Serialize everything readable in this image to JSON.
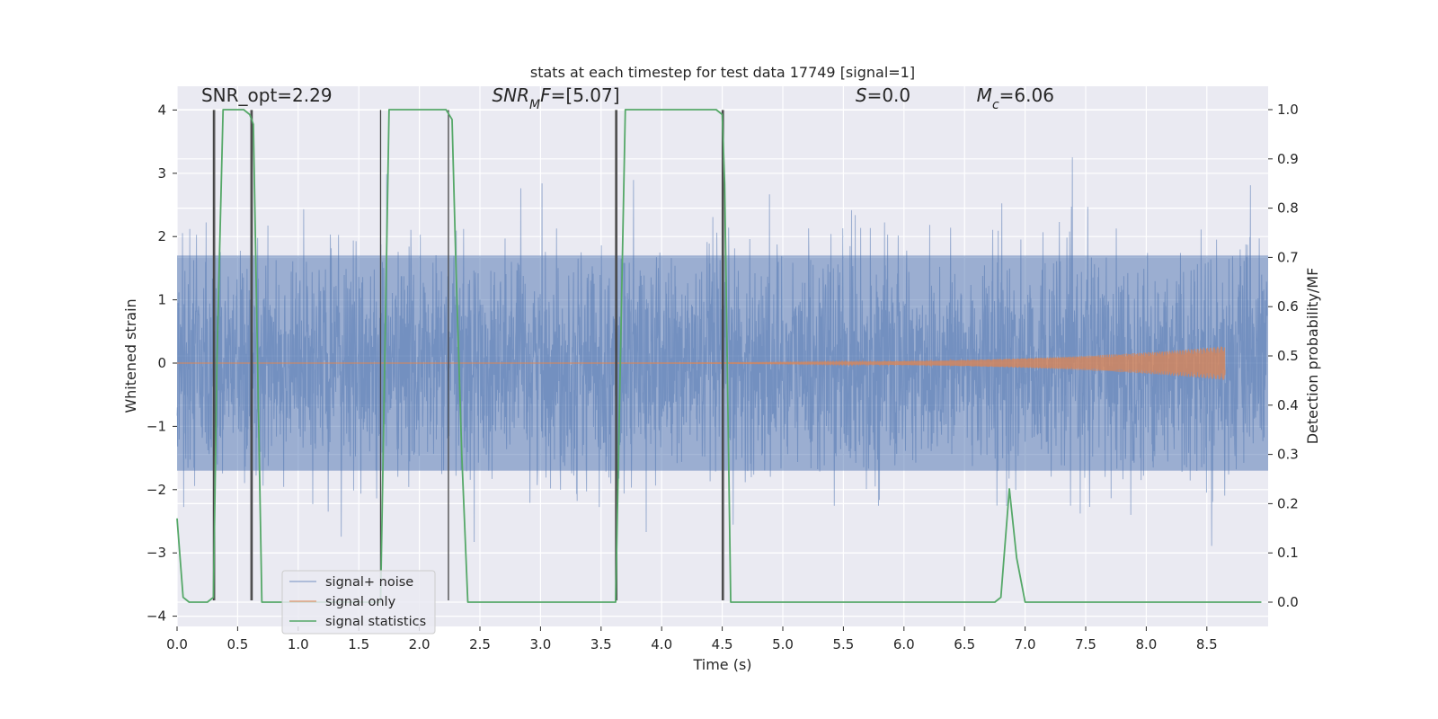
{
  "chart_data": {
    "type": "line",
    "title": "stats at each timestep for test data 17749 [signal=1]",
    "xlabel": "Time (s)",
    "ylabel_left": "Whitened strain",
    "ylabel_right": "Detection probability/MF",
    "xlim": [
      0,
      9.0
    ],
    "ylim_left": [
      -4.3,
      4.4
    ],
    "ylim_right": [
      -0.045,
      1.045
    ],
    "x_ticks": [
      0.0,
      0.5,
      1.0,
      1.5,
      2.0,
      2.5,
      3.0,
      3.5,
      4.0,
      4.5,
      5.0,
      5.5,
      6.0,
      6.5,
      7.0,
      7.5,
      8.0,
      8.5
    ],
    "x_tick_labels": [
      "0.0",
      "0.5",
      "1.0",
      "1.5",
      "2.0",
      "2.5",
      "3.0",
      "3.5",
      "4.0",
      "4.5",
      "5.0",
      "5.5",
      "6.0",
      "6.5",
      "7.0",
      "7.5",
      "8.0",
      "8.5"
    ],
    "y_left_ticks": [
      -4,
      -3,
      -2,
      -1,
      0,
      1,
      2,
      3,
      4
    ],
    "y_left_tick_labels": [
      "−4",
      "−3",
      "−2",
      "−1",
      "0",
      "1",
      "2",
      "3",
      "4"
    ],
    "y_right_ticks": [
      0.0,
      0.1,
      0.2,
      0.3,
      0.4,
      0.5,
      0.6,
      0.7,
      0.8,
      0.9,
      1.0
    ],
    "y_right_tick_labels": [
      "0.0",
      "0.1",
      "0.2",
      "0.3",
      "0.4",
      "0.5",
      "0.6",
      "0.7",
      "0.8",
      "0.9",
      "1.0"
    ],
    "grid": true,
    "legend_position": "lower-left",
    "annotations": [
      {
        "x": 0.2,
        "y": 4.13,
        "parts": [
          {
            "t": "SNR_opt=2.29",
            "i": false
          }
        ]
      },
      {
        "x": 2.6,
        "y": 4.13,
        "parts": [
          {
            "t": "SNR",
            "i": true
          },
          {
            "t": "M",
            "i": true,
            "sub": true
          },
          {
            "t": "F",
            "i": true
          },
          {
            "t": "=[5.07]",
            "i": false
          }
        ]
      },
      {
        "x": 5.6,
        "y": 4.13,
        "parts": [
          {
            "t": "S",
            "i": true
          },
          {
            "t": "=0.0",
            "i": false
          }
        ]
      },
      {
        "x": 6.6,
        "y": 4.13,
        "parts": [
          {
            "t": "M",
            "i": true
          },
          {
            "t": "c",
            "i": true,
            "sub": true
          },
          {
            "t": "=6.06",
            "i": false
          }
        ]
      }
    ],
    "series": [
      {
        "name": "signal+ noise",
        "color": "#4c72b0",
        "axis": "left",
        "noise_envelope": {
          "band_amplitude": 1.7,
          "spike_max": 4.0,
          "spike_min": -3.75
        }
      },
      {
        "name": "signal only",
        "color": "#dd8452",
        "axis": "left",
        "chirp": {
          "t_start": 0.0,
          "t_end": 8.65,
          "amplitude_end": 0.27
        }
      },
      {
        "name": "signal statistics",
        "color": "#55a868",
        "axis": "right",
        "x": [
          0.0,
          0.05,
          0.1,
          0.15,
          0.2,
          0.25,
          0.3,
          0.33,
          0.38,
          0.45,
          0.55,
          0.6,
          0.63,
          0.7,
          0.75,
          0.8,
          0.9,
          1.0,
          1.2,
          1.4,
          1.6,
          1.68,
          1.75,
          1.85,
          2.0,
          2.1,
          2.22,
          2.27,
          2.3,
          2.35,
          2.4,
          2.5,
          3.0,
          3.5,
          3.62,
          3.7,
          3.75,
          4.0,
          4.2,
          4.35,
          4.45,
          4.5,
          4.52,
          4.57,
          4.6,
          4.7,
          5.0,
          6.0,
          6.5,
          6.75,
          6.8,
          6.87,
          6.93,
          7.0,
          7.05,
          7.5,
          8.0,
          8.5,
          8.95
        ],
        "y": [
          0.17,
          0.01,
          0.0,
          0.0,
          0.0,
          0.0,
          0.01,
          0.5,
          1.0,
          1.0,
          1.0,
          0.99,
          0.97,
          0.0,
          0.0,
          0.0,
          0.0,
          0.0,
          0.0,
          0.0,
          0.0,
          0.0,
          1.0,
          1.0,
          1.0,
          1.0,
          1.0,
          0.98,
          0.7,
          0.3,
          0.0,
          0.0,
          0.0,
          0.0,
          0.0,
          1.0,
          1.0,
          1.0,
          1.0,
          1.0,
          1.0,
          0.99,
          0.85,
          0.0,
          0.0,
          0.0,
          0.0,
          0.0,
          0.0,
          0.0,
          0.01,
          0.23,
          0.09,
          0.0,
          0.0,
          0.0,
          0.0,
          0.0,
          0.0
        ]
      }
    ],
    "vertical_markers": {
      "color": "#444444",
      "x": [
        0.3,
        0.31,
        0.61,
        0.62,
        1.68,
        2.24,
        3.62,
        3.63,
        4.5,
        4.51
      ],
      "y_top": [
        4.0,
        4.0,
        4.0,
        4.0,
        4.0,
        4.0,
        4.0,
        4.0,
        4.0,
        4.0
      ],
      "y_bottom": [
        -3.75,
        -3.75,
        -3.75,
        -3.75,
        -3.75,
        -3.75,
        -3.75,
        -3.75,
        -3.75,
        -3.75
      ]
    }
  }
}
